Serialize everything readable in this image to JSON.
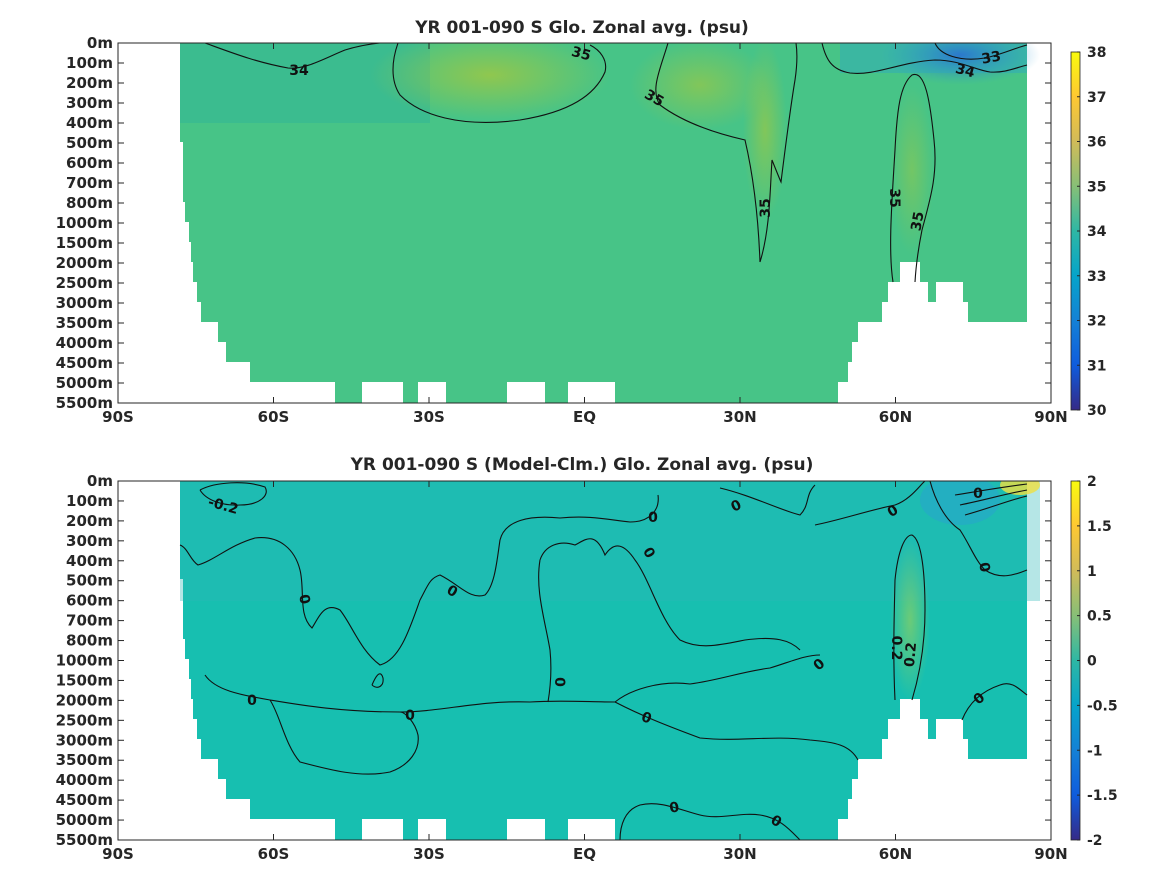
{
  "chart_data": [
    {
      "type": "heatmap",
      "title": "YR 001-090 S Glo. Zonal avg. (psu)",
      "x_ticks": [
        "90S",
        "60S",
        "30S",
        "EQ",
        "30N",
        "60N",
        "90N"
      ],
      "y_ticks": [
        "0m",
        "100m",
        "200m",
        "300m",
        "400m",
        "500m",
        "600m",
        "700m",
        "800m",
        "1000m",
        "1500m",
        "2000m",
        "2500m",
        "3000m",
        "3500m",
        "4000m",
        "4500m",
        "5000m",
        "5500m"
      ],
      "colorbar": {
        "min": 30,
        "max": 38,
        "ticks": [
          "30",
          "31",
          "32",
          "33",
          "34",
          "35",
          "36",
          "37",
          "38"
        ]
      },
      "contour_labels": [
        "34",
        "35",
        "35",
        "33",
        "34",
        "35",
        "35",
        "35"
      ],
      "colors": {
        "background_field": "#45c585",
        "salty_core": "#a9c83a",
        "fresh_arctic": "#2f7de0"
      }
    },
    {
      "type": "heatmap",
      "title": "YR 001-090 S (Model-Clm.) Glo. Zonal avg. (psu)",
      "x_ticks": [
        "90S",
        "60S",
        "30S",
        "EQ",
        "30N",
        "60N",
        "90N"
      ],
      "y_ticks": [
        "0m",
        "100m",
        "200m",
        "300m",
        "400m",
        "500m",
        "600m",
        "700m",
        "800m",
        "1000m",
        "1500m",
        "2000m",
        "2500m",
        "3000m",
        "3500m",
        "4000m",
        "4500m",
        "5000m",
        "5500m"
      ],
      "colorbar": {
        "min": -2,
        "max": 2,
        "ticks": [
          "2",
          "1.5",
          "1",
          "0.5",
          "0",
          "-0.5",
          "-1",
          "-1.5",
          "-2"
        ]
      },
      "contour_labels": [
        "-0.2",
        "0",
        "0",
        "0",
        "0",
        "0",
        "0",
        "0",
        "0",
        "0",
        "0",
        "0",
        "0",
        "0",
        "0",
        "0",
        "0.2",
        "0.2",
        "0",
        "0"
      ],
      "colors": {
        "background_field": "#16bfae",
        "positive_anomaly": "#7fcc5a"
      }
    }
  ]
}
